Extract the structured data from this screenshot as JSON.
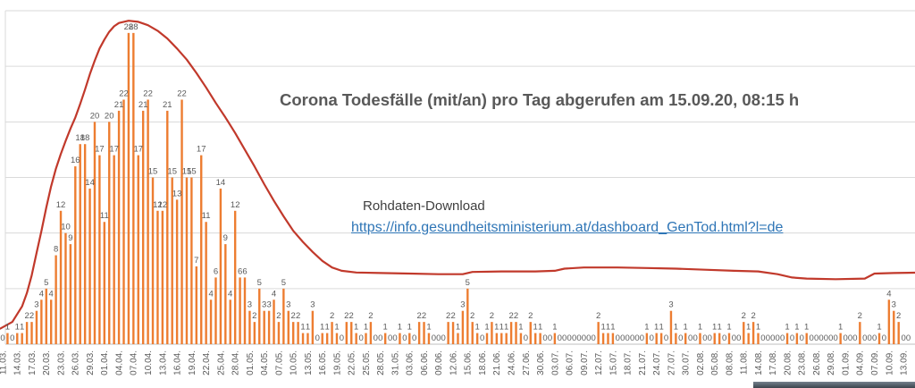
{
  "title": "Corona Todesfälle (mit/an) pro Tag abgerufen am 15.09.20, 08:15 h",
  "download": {
    "label": "Rohdaten-Download",
    "url_text": "https://info.gesundheitsministerium.at/dashboard_GenTod.html?l=de"
  },
  "chart_data": {
    "type": "bar",
    "title": "Corona Todesfälle (mit/an) pro Tag abgerufen am 15.09.20, 08:15 h",
    "x_start": "11.03.",
    "x_end": "14.09.",
    "ylim": [
      0,
      30
    ],
    "grid_step": 5,
    "grid": true,
    "legend_position": "none",
    "tick_labels": [
      "11.03.",
      "14.03.",
      "17.03.",
      "20.03.",
      "23.03.",
      "26.03.",
      "29.03.",
      "01.04.",
      "04.04.",
      "07.04.",
      "10.04.",
      "13.04.",
      "16.04.",
      "19.04.",
      "22.04.",
      "25.04.",
      "28.04.",
      "01.05.",
      "04.05.",
      "07.05.",
      "10.05.",
      "13.05.",
      "16.05.",
      "19.05.",
      "22.05.",
      "25.05.",
      "28.05.",
      "31.05.",
      "03.06.",
      "06.06.",
      "09.06.",
      "12.06.",
      "15.06.",
      "18.06.",
      "21.06.",
      "24.06.",
      "27.06.",
      "30.06.",
      "03.07.",
      "06.07.",
      "09.07.",
      "12.07.",
      "15.07.",
      "18.07.",
      "21.07.",
      "24.07.",
      "27.07.",
      "30.07.",
      "02.08.",
      "05.08.",
      "08.08.",
      "11.08.",
      "14.08.",
      "17.08.",
      "20.08.",
      "23.08.",
      "26.08.",
      "29.08.",
      "01.09.",
      "04.09.",
      "07.09.",
      "10.09.",
      "13.09."
    ],
    "values": [
      0,
      1,
      0,
      1,
      1,
      2,
      2,
      3,
      4,
      5,
      4,
      8,
      12,
      10,
      9,
      16,
      18,
      18,
      14,
      20,
      17,
      11,
      20,
      17,
      21,
      22,
      28,
      28,
      17,
      21,
      22,
      15,
      12,
      12,
      21,
      15,
      13,
      22,
      15,
      15,
      7,
      17,
      11,
      4,
      6,
      14,
      9,
      4,
      12,
      6,
      6,
      3,
      2,
      5,
      3,
      3,
      4,
      2,
      5,
      3,
      2,
      2,
      1,
      1,
      3,
      0,
      1,
      1,
      2,
      1,
      0,
      2,
      2,
      1,
      0,
      1,
      2,
      0,
      0,
      1,
      0,
      0,
      1,
      0,
      1,
      0,
      2,
      2,
      1,
      0,
      0,
      0,
      2,
      2,
      1,
      3,
      5,
      2,
      1,
      0,
      1,
      2,
      1,
      1,
      1,
      2,
      2,
      1,
      0,
      2,
      1,
      1,
      0,
      0,
      1,
      0,
      0,
      0,
      0,
      0,
      0,
      0,
      0,
      2,
      1,
      1,
      1,
      0,
      0,
      0,
      0,
      0,
      0,
      1,
      0,
      1,
      1,
      0,
      3,
      1,
      0,
      1,
      0,
      0,
      1,
      0,
      0,
      1,
      1,
      0,
      1,
      0,
      0,
      2,
      1,
      2,
      1,
      0,
      0,
      0,
      0,
      0,
      1,
      0,
      1,
      0,
      1,
      0,
      0,
      0,
      0,
      0,
      0,
      1,
      0,
      0,
      0,
      2,
      0,
      0,
      0,
      1,
      0,
      4,
      3,
      2,
      0,
      0
    ],
    "trend_line": [
      [
        -0.5,
        1.4
      ],
      [
        2,
        2.0
      ],
      [
        4,
        3.4
      ],
      [
        5,
        4.6
      ],
      [
        6,
        6.2
      ],
      [
        7,
        8.2
      ],
      [
        8,
        10.2
      ],
      [
        9,
        12.3
      ],
      [
        10,
        14.2
      ],
      [
        11,
        15.8
      ],
      [
        12,
        17.1
      ],
      [
        13,
        18.3
      ],
      [
        14,
        19.4
      ],
      [
        15,
        20.4
      ],
      [
        16,
        21.6
      ],
      [
        17,
        22.9
      ],
      [
        18,
        24.3
      ],
      [
        19,
        25.5
      ],
      [
        20,
        26.6
      ],
      [
        21,
        27.4
      ],
      [
        22,
        28.1
      ],
      [
        23,
        28.6
      ],
      [
        24,
        28.9
      ],
      [
        26,
        29.1
      ],
      [
        28,
        29.0
      ],
      [
        30,
        28.7
      ],
      [
        32,
        28.2
      ],
      [
        34,
        27.5
      ],
      [
        36,
        26.6
      ],
      [
        38,
        25.6
      ],
      [
        40,
        24.4
      ],
      [
        42,
        23.1
      ],
      [
        44,
        21.7
      ],
      [
        46,
        20.4
      ],
      [
        48,
        19.0
      ],
      [
        50,
        17.5
      ],
      [
        52,
        16.0
      ],
      [
        54,
        14.4
      ],
      [
        56,
        12.9
      ],
      [
        58,
        11.5
      ],
      [
        60,
        10.2
      ],
      [
        62,
        9.2
      ],
      [
        64,
        8.3
      ],
      [
        66,
        7.5
      ],
      [
        68,
        6.9
      ],
      [
        70,
        6.6
      ],
      [
        73,
        6.45
      ],
      [
        78,
        6.4
      ],
      [
        84,
        6.35
      ],
      [
        90,
        6.3
      ],
      [
        95,
        6.3
      ],
      [
        97,
        6.5
      ],
      [
        103,
        6.55
      ],
      [
        110,
        6.55
      ],
      [
        114,
        6.6
      ],
      [
        116,
        6.8
      ],
      [
        120,
        6.9
      ],
      [
        127,
        6.9
      ],
      [
        133,
        6.85
      ],
      [
        139,
        6.8
      ],
      [
        145,
        6.7
      ],
      [
        151,
        6.6
      ],
      [
        156,
        6.55
      ],
      [
        160,
        6.3
      ],
      [
        163,
        6.0
      ],
      [
        166,
        5.9
      ],
      [
        172,
        5.85
      ],
      [
        178,
        5.9
      ],
      [
        180,
        6.35
      ],
      [
        184,
        6.4
      ],
      [
        190,
        6.45
      ],
      [
        196,
        6.45
      ],
      [
        201,
        6.5
      ]
    ],
    "colors": {
      "bar": "#ED7D31",
      "line": "#C1392B",
      "grid": "#DADADA",
      "axis": "#BFBFBF",
      "label": "#595959",
      "title": "#595959",
      "link": "#2E75B6"
    }
  }
}
